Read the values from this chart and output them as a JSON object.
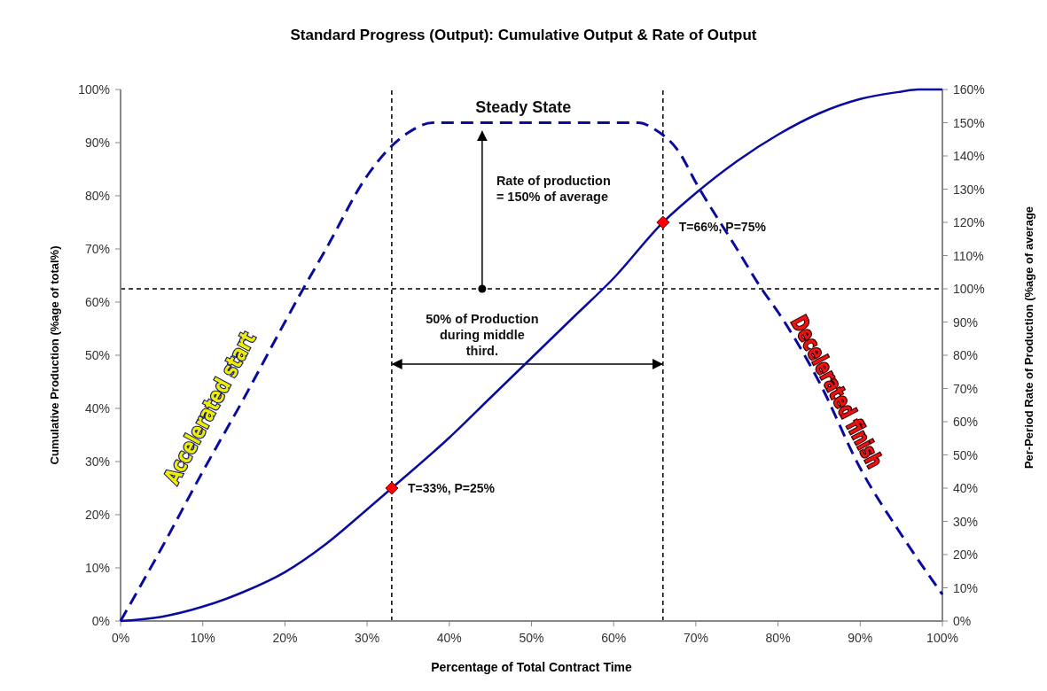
{
  "chart_data": {
    "type": "line",
    "title": "Standard Progress (Output): Cumulative Output & Rate of Output",
    "xlabel": "Percentage of Total Contract Time",
    "ylabel": "Cumulative Production (%age of total%)",
    "y2label": "Per-Period Rate of  Production (%age of average",
    "xlim": [
      0,
      100
    ],
    "ylim": [
      0,
      100
    ],
    "y2lim": [
      0,
      160
    ],
    "xticks": [
      {
        "value": 0,
        "label": "0%"
      },
      {
        "value": 10,
        "label": "10%"
      },
      {
        "value": 20,
        "label": "20%"
      },
      {
        "value": 30,
        "label": "30%"
      },
      {
        "value": 40,
        "label": "40%"
      },
      {
        "value": 50,
        "label": "50%"
      },
      {
        "value": 60,
        "label": "60%"
      },
      {
        "value": 70,
        "label": "70%"
      },
      {
        "value": 80,
        "label": "80%"
      },
      {
        "value": 90,
        "label": "90%"
      },
      {
        "value": 100,
        "label": "100%"
      }
    ],
    "yticks": [
      {
        "value": 0,
        "label": "0%"
      },
      {
        "value": 10,
        "label": "10%"
      },
      {
        "value": 20,
        "label": "20%"
      },
      {
        "value": 30,
        "label": "30%"
      },
      {
        "value": 40,
        "label": "40%"
      },
      {
        "value": 50,
        "label": "50%"
      },
      {
        "value": 60,
        "label": "60%"
      },
      {
        "value": 70,
        "label": "70%"
      },
      {
        "value": 80,
        "label": "80%"
      },
      {
        "value": 90,
        "label": "90%"
      },
      {
        "value": 100,
        "label": "100%"
      }
    ],
    "y2ticks": [
      {
        "value": 0,
        "label": "0%"
      },
      {
        "value": 10,
        "label": "10%"
      },
      {
        "value": 20,
        "label": "20%"
      },
      {
        "value": 30,
        "label": "30%"
      },
      {
        "value": 40,
        "label": "40%"
      },
      {
        "value": 50,
        "label": "50%"
      },
      {
        "value": 60,
        "label": "60%"
      },
      {
        "value": 70,
        "label": "70%"
      },
      {
        "value": 80,
        "label": "80%"
      },
      {
        "value": 90,
        "label": "90%"
      },
      {
        "value": 100,
        "label": "100%"
      },
      {
        "value": 110,
        "label": "110%"
      },
      {
        "value": 120,
        "label": "120%"
      },
      {
        "value": 130,
        "label": "130%"
      },
      {
        "value": 140,
        "label": "140%"
      },
      {
        "value": 150,
        "label": "150%"
      },
      {
        "value": 160,
        "label": "160%"
      }
    ],
    "series": [
      {
        "color": "#0a0a9e",
        "line_style": "solid",
        "marker": "none",
        "x": [
          0,
          5,
          10,
          15,
          20,
          25,
          30,
          33,
          40,
          45,
          50,
          55,
          60,
          66,
          70,
          75,
          80,
          85,
          90,
          95,
          97,
          100
        ],
        "values": [
          0,
          0.8,
          2.7,
          5.5,
          9.2,
          14.5,
          21,
          25,
          34.5,
          42,
          49.5,
          57,
          64.5,
          75,
          80.5,
          86.5,
          91.5,
          95.5,
          98.2,
          99.6,
          100,
          100
        ]
      },
      {
        "axis": "y2",
        "color": "#0a0a9e",
        "line_style": "dashed",
        "marker": "none",
        "x": [
          0,
          5,
          10,
          15,
          20,
          22,
          25,
          30,
          33,
          35,
          38,
          40,
          50,
          60,
          63,
          65,
          68,
          70,
          75,
          78,
          80,
          85,
          90,
          95,
          100
        ],
        "values": [
          0,
          22,
          45,
          67,
          90,
          99,
          112,
          134,
          143,
          147,
          150,
          150,
          150,
          150,
          150,
          148,
          141,
          132,
          112,
          100,
          93,
          72,
          46,
          26,
          8
        ]
      },
      {
        "type": "scatter",
        "color": "#ff0000",
        "marker": "diamond",
        "x": [
          33,
          66
        ],
        "values": [
          25,
          75
        ]
      }
    ],
    "ref_lines": [
      {
        "axis": "y2",
        "value": 100,
        "color": "#000000",
        "line_style": "dashed"
      },
      {
        "axis": "x",
        "value": 33,
        "color": "#000000",
        "line_style": "dashed"
      },
      {
        "axis": "x",
        "value": 66,
        "color": "#000000",
        "line_style": "dashed"
      }
    ],
    "annotations": [
      "Steady State",
      "Rate of production\n= 150% of average",
      "50% of Production\nduring middle\nthird.",
      {
        "text": "T=33%, P=25%",
        "x": 33,
        "y": 25
      },
      {
        "text": "T=66%, P=75%",
        "x": 66,
        "y": 75
      },
      "Accelerated start",
      "Decelerated finish"
    ]
  }
}
